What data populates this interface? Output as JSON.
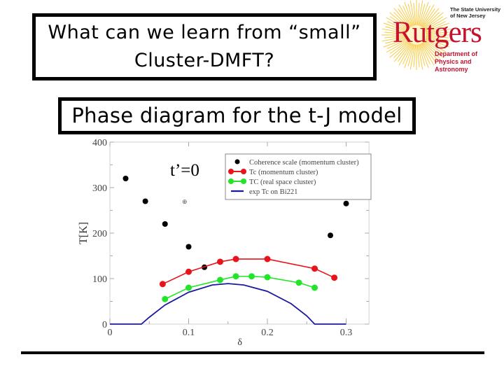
{
  "slide": {
    "title_line1": "What can we learn from “small”",
    "title_line2": "Cluster-DMFT?",
    "subtitle": "Phase diagram for the t-J model",
    "annotation": "t’=0"
  },
  "logo": {
    "university_line1": "The State University",
    "university_line2": "of New Jersey",
    "wordmark": "Rutgers",
    "dept_line1": "Department of",
    "dept_line2": "Physics and Astronomy",
    "colors": {
      "red": "#c4122f",
      "sun": "#f6b800"
    }
  },
  "chart_data": {
    "type": "line",
    "title": "Phase diagram for the t-J model",
    "annotation": "t’=0",
    "xlabel": "δ",
    "ylabel": "T[K]",
    "xlim": [
      0,
      0.32
    ],
    "ylim": [
      0,
      400
    ],
    "x_ticks": [
      "0",
      "0.1",
      "0.2",
      "0.3"
    ],
    "y_ticks": [
      "0",
      "100",
      "200",
      "300",
      "400"
    ],
    "grid": false,
    "legend_position": "upper right",
    "series": [
      {
        "name": "Coherence scale (momentum cluster)",
        "style": "markers",
        "color": "#000000",
        "x": [
          0.02,
          0.045,
          0.07,
          0.1,
          0.12,
          0.28,
          0.3
        ],
        "y": [
          320,
          270,
          220,
          170,
          125,
          195,
          265
        ]
      },
      {
        "name": "Tc (momentum cluster)",
        "style": "line+markers",
        "color": "#e8141b",
        "x": [
          0.067,
          0.1,
          0.14,
          0.16,
          0.2,
          0.26,
          0.285
        ],
        "y": [
          88,
          115,
          137,
          143,
          143,
          122,
          102
        ]
      },
      {
        "name": "TC (real space cluster)",
        "style": "line+markers",
        "color": "#22e52a",
        "x": [
          0.07,
          0.1,
          0.14,
          0.16,
          0.18,
          0.2,
          0.24,
          0.26
        ],
        "y": [
          55,
          80,
          97,
          105,
          105,
          103,
          91,
          80
        ]
      },
      {
        "name": "exp Tc on Bi221",
        "style": "line",
        "color": "#1a1a9e",
        "x": [
          0,
          0.04,
          0.05,
          0.07,
          0.1,
          0.13,
          0.15,
          0.17,
          0.2,
          0.23,
          0.25,
          0.26,
          0.3
        ],
        "y": [
          0,
          0,
          15,
          42,
          70,
          86,
          89,
          86,
          72,
          45,
          18,
          0,
          0
        ]
      }
    ]
  }
}
